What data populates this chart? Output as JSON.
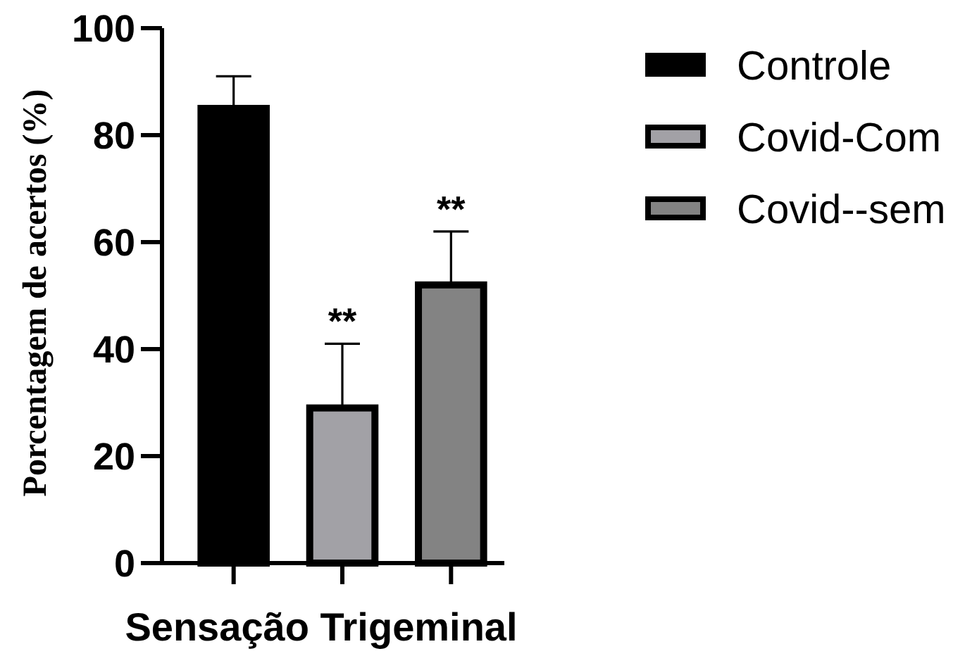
{
  "chart_data": {
    "type": "bar",
    "xlabel": "Sensação Trigeminal",
    "ylabel": "Porcentagem de acertos (%)",
    "categories": [
      null,
      null,
      null
    ],
    "series": [
      {
        "name": "Controle",
        "color": "#000000",
        "values": [
          85,
          null,
          null
        ],
        "errors": [
          [
            85,
            91
          ],
          null,
          null
        ]
      },
      {
        "name": "Covid-Com",
        "color": "#a2a1a6",
        "values": [
          null,
          29,
          null
        ],
        "errors": [
          null,
          [
            29,
            41
          ],
          null
        ],
        "value_labels": [
          null,
          "**",
          null
        ]
      },
      {
        "name": "Covid--sem",
        "color": "#838383",
        "values": [
          null,
          null,
          52
        ],
        "errors": [
          null,
          null,
          [
            52,
            62
          ]
        ],
        "value_labels": [
          null,
          null,
          "**"
        ]
      }
    ],
    "ylim": [
      0,
      100
    ],
    "yticks": [
      0,
      20,
      40,
      60,
      80,
      100
    ],
    "legend": "right"
  }
}
